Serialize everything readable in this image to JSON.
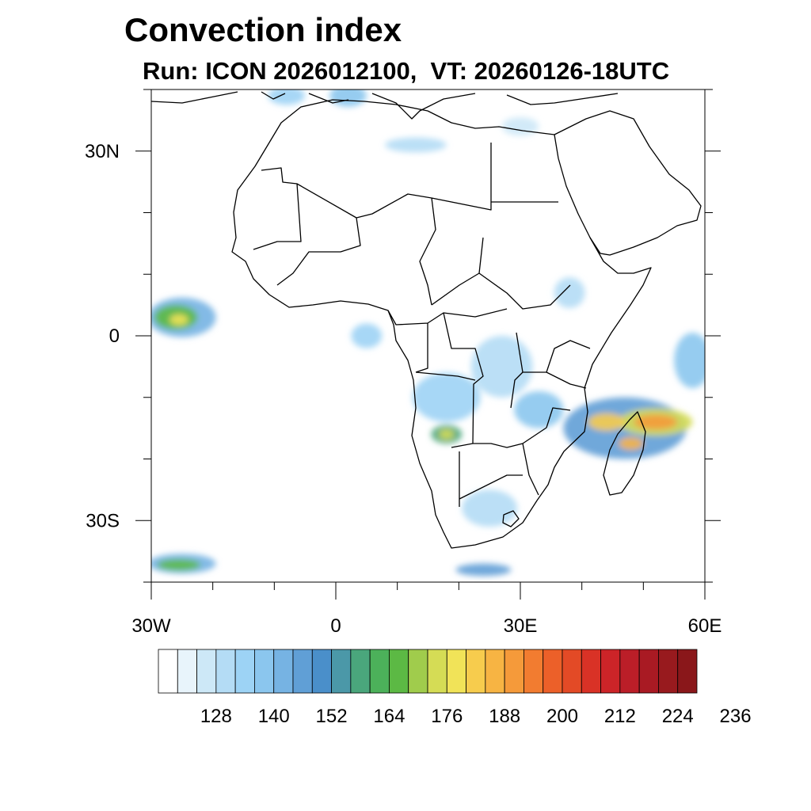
{
  "title": "Convection index",
  "subtitle": "Run: ICON 2026012100,  VT: 20260126-18UTC",
  "map": {
    "lon_range": [
      -30,
      60
    ],
    "lat_range": [
      -40,
      40
    ],
    "lat_ticks": [
      {
        "value": 30,
        "label": "30N"
      },
      {
        "value": 0,
        "label": "0"
      },
      {
        "value": -30,
        "label": "30S"
      }
    ],
    "lon_ticks": [
      {
        "value": -30,
        "label": "30W"
      },
      {
        "value": 0,
        "label": "0"
      },
      {
        "value": 30,
        "label": "30E"
      },
      {
        "value": 60,
        "label": "60E"
      }
    ],
    "minor_lat": [
      40,
      20,
      10,
      -10,
      -20,
      -40
    ],
    "minor_lon": [
      -20,
      -10,
      10,
      20,
      40,
      50
    ]
  },
  "colorbar": {
    "colors": [
      "#ffffff",
      "#e8f4fb",
      "#cde8f7",
      "#b4dcf5",
      "#9dd3f5",
      "#8bc6ee",
      "#76b3e3",
      "#609fd6",
      "#4a8fca",
      "#4b98a8",
      "#4aa67c",
      "#4cb15a",
      "#5cb944",
      "#a0cc4c",
      "#d5dc55",
      "#f1e358",
      "#f7cc4d",
      "#f7b443",
      "#f59a3a",
      "#f27c30",
      "#ec6029",
      "#e34a26",
      "#d93226",
      "#cc2428",
      "#bb1e28",
      "#a91a23",
      "#981a1e",
      "#8a171a"
    ],
    "labels": [
      "128",
      "140",
      "152",
      "164",
      "176",
      "188",
      "200",
      "212",
      "224",
      "236"
    ]
  },
  "convection_areas": [
    {
      "lon": -25,
      "lat": 3,
      "rlon": 5.5,
      "rlat": 3.2,
      "level": 6
    },
    {
      "lon": -26,
      "lat": 3,
      "rlon": 3.5,
      "rlat": 2.0,
      "level": 12
    },
    {
      "lon": -25.5,
      "lat": 2.6,
      "rlon": 1.5,
      "rlat": 0.9,
      "level": 15
    },
    {
      "lon": -25,
      "lat": -37,
      "rlon": 5.5,
      "rlat": 1.6,
      "level": 6
    },
    {
      "lon": -25.5,
      "lat": -37.2,
      "rlon": 3.5,
      "rlat": 0.9,
      "level": 12
    },
    {
      "lon": 24,
      "lat": -38,
      "rlon": 4.5,
      "rlat": 1.0,
      "level": 7
    },
    {
      "lon": 5,
      "lat": 0,
      "rlon": 2.5,
      "rlat": 2.0,
      "level": 4
    },
    {
      "lon": 18,
      "lat": -10,
      "rlon": 5.5,
      "rlat": 4.0,
      "level": 4
    },
    {
      "lon": 18,
      "lat": -16,
      "rlon": 2.5,
      "rlat": 1.5,
      "level": 10
    },
    {
      "lon": 18,
      "lat": -16,
      "rlon": 1.2,
      "rlat": 0.8,
      "level": 14
    },
    {
      "lon": 27,
      "lat": -5,
      "rlon": 5.0,
      "rlat": 5.0,
      "level": 3
    },
    {
      "lon": 33,
      "lat": -12,
      "rlon": 4.0,
      "rlat": 3.0,
      "level": 5
    },
    {
      "lon": 38,
      "lat": 7,
      "rlon": 2.5,
      "rlat": 2.5,
      "level": 3
    },
    {
      "lon": 25,
      "lat": -28,
      "rlon": 4.5,
      "rlat": 3.0,
      "level": 3
    },
    {
      "lon": 47,
      "lat": -15,
      "rlon": 10.0,
      "rlat": 5.0,
      "level": 7
    },
    {
      "lon": 52,
      "lat": -14,
      "rlon": 6.0,
      "rlat": 2.2,
      "level": 14
    },
    {
      "lon": 52,
      "lat": -14,
      "rlon": 3.5,
      "rlat": 1.2,
      "level": 18
    },
    {
      "lon": 44,
      "lat": -14,
      "rlon": 3.0,
      "rlat": 1.4,
      "level": 16
    },
    {
      "lon": 48,
      "lat": -17.5,
      "rlon": 2.0,
      "rlat": 1.0,
      "level": 17
    },
    {
      "lon": 58,
      "lat": -4,
      "rlon": 3.0,
      "rlat": 4.5,
      "level": 5
    },
    {
      "lon": -8,
      "lat": 39,
      "rlon": 3.0,
      "rlat": 1.5,
      "level": 4
    },
    {
      "lon": 2,
      "lat": 39,
      "rlon": 3.0,
      "rlat": 1.8,
      "level": 5
    },
    {
      "lon": 13,
      "lat": 31,
      "rlon": 5.0,
      "rlat": 1.2,
      "level": 3
    },
    {
      "lon": 30,
      "lat": 34,
      "rlon": 3.0,
      "rlat": 1.5,
      "level": 2
    }
  ]
}
